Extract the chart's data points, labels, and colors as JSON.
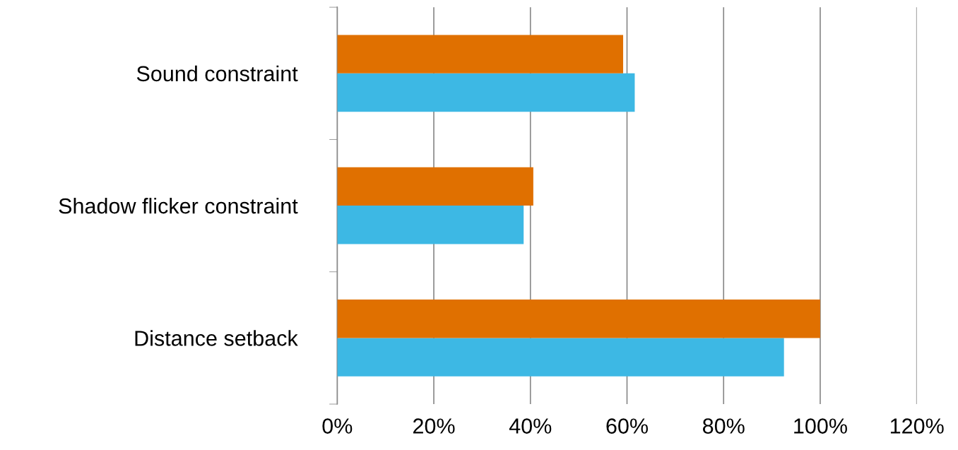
{
  "chart_data": {
    "type": "bar",
    "orientation": "horizontal",
    "categories": [
      "Sound constraint",
      "Shadow flicker constraint",
      "Distance setback"
    ],
    "series": [
      {
        "color": "#3db8e4",
        "values": [
          61.6,
          38.6,
          92.5
        ]
      },
      {
        "color": "#e07000",
        "values": [
          59.2,
          40.6,
          100
        ]
      }
    ],
    "xlim": [
      0,
      120
    ],
    "xticks": [
      {
        "value": 0,
        "label": "0%"
      },
      {
        "value": 20,
        "label": "20%"
      },
      {
        "value": 40,
        "label": "40%"
      },
      {
        "value": 60,
        "label": "60%"
      },
      {
        "value": 80,
        "label": "80%"
      },
      {
        "value": 100,
        "label": "100%"
      },
      {
        "value": 120,
        "label": "120%"
      }
    ],
    "grid": "x",
    "legend": false
  }
}
